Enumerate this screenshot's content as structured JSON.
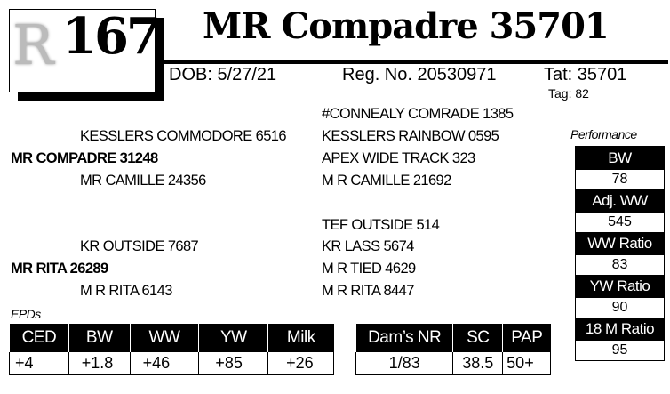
{
  "header": {
    "logo_letter": "R",
    "lot_number": "167",
    "title": "MR Compadre 35701",
    "dob": "DOB: 5/27/21",
    "reg_no": "Reg. No. 20530971",
    "tattoo": "Tat: 35701",
    "tag": "Tag: 82"
  },
  "pedigree": {
    "sire": "MR COMPADRE 31248",
    "sire_sire": "KESSLERS COMMODORE 6516",
    "sire_dam": "MR CAMILLE 24356",
    "sire_sire_sire": "#CONNEALY COMRADE 1385",
    "sire_sire_dam": "KESSLERS RAINBOW 0595",
    "sire_dam_sire": "APEX WIDE TRACK 323",
    "sire_dam_dam": "M R CAMILLE 21692",
    "dam": "MR RITA 26289",
    "dam_sire": "KR OUTSIDE 7687",
    "dam_dam": "M R RITA 6143",
    "dam_sire_sire": "TEF OUTSIDE 514",
    "dam_sire_dam": "KR LASS 5674",
    "dam_dam_sire": "M R TIED 4629",
    "dam_dam_dam": "M R RITA 8447"
  },
  "performance": {
    "label": "Performance",
    "items": [
      {
        "label": "BW",
        "value": "78"
      },
      {
        "label": "Adj. WW",
        "value": "545"
      },
      {
        "label": "WW Ratio",
        "value": "83"
      },
      {
        "label": "YW Ratio",
        "value": "90"
      },
      {
        "label": "18 M Ratio",
        "value": "95"
      }
    ]
  },
  "epds": {
    "label": "EPDs",
    "headers": [
      "CED",
      "BW",
      "WW",
      "YW",
      "Milk"
    ],
    "values": [
      "+4",
      "+1.8",
      "+46",
      "+85",
      "+26"
    ]
  },
  "other": {
    "headers": [
      "Dam’s NR",
      "SC",
      "PAP"
    ],
    "values": [
      "1/83",
      "38.5",
      "50+"
    ]
  }
}
